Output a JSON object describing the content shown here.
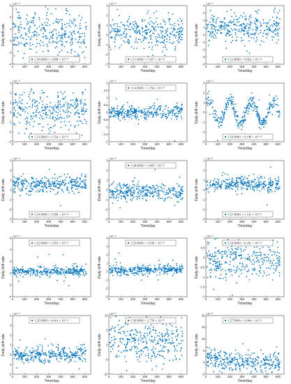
{
  "figure": {
    "xlabel": "Time/day",
    "ylabel": "Daily drift rate"
  },
  "chart_data": [
    {
      "type": "scatter",
      "legend": "C10 RMS = 1.808 × 10⁻¹³",
      "exponent": "×10⁻¹³",
      "xlim": [
        0,
        650
      ],
      "ylim": [
        -4,
        6
      ],
      "yticks": [
        -4,
        -2,
        0,
        2,
        4,
        6
      ],
      "xticks": [
        0,
        100,
        200,
        300,
        400,
        500,
        600
      ],
      "legend_loc": "bottom",
      "pattern": "noise",
      "center": 1.2,
      "spread": 1.8
    },
    {
      "type": "scatter",
      "legend": "C11 RMS = 7.367 × 10⁻¹⁴",
      "exponent": "×10⁻¹³",
      "xlim": [
        0,
        650
      ],
      "ylim": [
        -3,
        3
      ],
      "yticks": [
        -3,
        -2,
        -1,
        0,
        1,
        2,
        3
      ],
      "xticks": [
        0,
        100,
        200,
        300,
        400,
        500,
        600
      ],
      "legend_loc": "bottom",
      "pattern": "noise",
      "center": 0.2,
      "spread": 0.8
    },
    {
      "type": "scatter",
      "legend": "C12 RMS = 9.662 × 10⁻¹⁴",
      "exponent": "×10⁻¹³",
      "xlim": [
        0,
        650
      ],
      "ylim": [
        -4,
        4
      ],
      "yticks": [
        -4,
        -3,
        -2,
        -1,
        0,
        1,
        2,
        3,
        4
      ],
      "xticks": [
        0,
        100,
        200,
        300,
        400,
        500,
        600
      ],
      "legend_loc": "bottom",
      "pattern": "noise",
      "center": 0.9,
      "spread": 1.0
    },
    {
      "type": "scatter",
      "legend": "C13 RMS = 1.154 × 10⁻¹³",
      "exponent": "×10⁻¹³",
      "xlim": [
        0,
        650
      ],
      "ylim": [
        -3,
        3
      ],
      "yticks": [
        -3,
        -2,
        -1,
        0,
        1,
        2,
        3
      ],
      "xticks": [
        0,
        100,
        200,
        300,
        400,
        500,
        600
      ],
      "legend_loc": "bottom",
      "pattern": "noise",
      "center": 0.2,
      "spread": 1.1
    },
    {
      "type": "scatter",
      "legend": "C14 RMS = 1.764 × 10⁻¹³",
      "exponent": "×10⁻¹²",
      "xlim": [
        0,
        650
      ],
      "ylim": [
        -2,
        2
      ],
      "yticks": [
        -2,
        -1.5,
        -1,
        -0.5,
        0,
        0.5,
        1,
        1.5,
        2
      ],
      "xticks": [
        0,
        100,
        200,
        300,
        400,
        500,
        600
      ],
      "legend_loc": "top",
      "pattern": "noise",
      "center": 0.0,
      "spread": 0.25
    },
    {
      "type": "scatter",
      "legend": "C16 RMS = 9.188 × 10⁻¹⁴",
      "exponent": "×10⁻¹³",
      "xlim": [
        0,
        650
      ],
      "ylim": [
        -3,
        3
      ],
      "yticks": [
        -3,
        -2,
        -1,
        0,
        1,
        2,
        3
      ],
      "xticks": [
        0,
        100,
        200,
        300,
        400,
        500,
        600
      ],
      "legend_loc": "bottom",
      "pattern": "sine",
      "center": 0.0,
      "spread": 0.35,
      "amplitude": 1.1,
      "period": 180
    },
    {
      "type": "scatter",
      "legend": "C19 RMS = 5.906 × 10⁻¹⁴",
      "exponent": "×10⁻¹³",
      "xlim": [
        0,
        650
      ],
      "ylim": [
        -3,
        3
      ],
      "yticks": [
        -3,
        -2,
        -1,
        0,
        1,
        2,
        3
      ],
      "xticks": [
        0,
        100,
        200,
        300,
        400,
        500,
        600
      ],
      "legend_loc": "bottom",
      "pattern": "noise",
      "center": 0.6,
      "spread": 0.4
    },
    {
      "type": "scatter",
      "legend": "C20 RMS = 1.005 × 10⁻¹³",
      "exponent": "×10⁻¹²",
      "xlim": [
        0,
        650
      ],
      "ylim": [
        -3,
        3
      ],
      "yticks": [
        -3,
        -2,
        -1,
        0,
        1,
        2,
        3
      ],
      "xticks": [
        0,
        100,
        200,
        300,
        400,
        500,
        600
      ],
      "legend_loc": "top",
      "pattern": "noise",
      "center": -0.2,
      "spread": 0.45
    },
    {
      "type": "scatter",
      "legend": "C21 RMS = 1.141 × 10⁻¹³",
      "exponent": "×10⁻¹²",
      "xlim": [
        0,
        650
      ],
      "ylim": [
        -3,
        3
      ],
      "yticks": [
        -3,
        -2,
        -1,
        0,
        1,
        2,
        3
      ],
      "xticks": [
        0,
        100,
        200,
        300,
        400,
        500,
        600
      ],
      "legend_loc": "bottom",
      "pattern": "noise",
      "center": 0.6,
      "spread": 0.35
    },
    {
      "type": "scatter",
      "legend": "C22 RMS = 1.055 × 10⁻¹³",
      "exponent": "×10⁻¹²",
      "xlim": [
        0,
        650
      ],
      "ylim": [
        -4,
        6
      ],
      "yticks": [
        -4,
        -2,
        0,
        2,
        4,
        6
      ],
      "xticks": [
        0,
        100,
        200,
        300,
        400,
        500,
        600
      ],
      "legend_loc": "top",
      "pattern": "noise",
      "center": 0.3,
      "spread": 0.35
    },
    {
      "type": "scatter",
      "legend": "C23 RMS = 1.030 × 10⁻¹³",
      "exponent": "×10⁻¹²",
      "xlim": [
        0,
        650
      ],
      "ylim": [
        -3,
        4
      ],
      "yticks": [
        -3,
        -2,
        -1,
        0,
        1,
        2,
        3,
        4
      ],
      "xticks": [
        0,
        100,
        200,
        300,
        400,
        500,
        600
      ],
      "legend_loc": "top",
      "pattern": "noise",
      "center": 0.2,
      "spread": 0.3
    },
    {
      "type": "scatter",
      "legend": "C24 RMS = 6.281 × 10⁻¹⁴",
      "exponent": "×10⁻¹³",
      "xlim": [
        0,
        650
      ],
      "ylim": [
        -2,
        1
      ],
      "yticks": [
        -2,
        -1.5,
        -1,
        -0.5,
        0,
        0.5,
        1
      ],
      "xticks": [
        0,
        100,
        200,
        300,
        400,
        500,
        600
      ],
      "legend_loc": "top",
      "pattern": "noise",
      "center": -0.1,
      "spread": 0.45
    },
    {
      "type": "scatter",
      "legend": "C25 RMS = 4.414 × 10⁻¹⁴",
      "exponent": "×10⁻¹³",
      "xlim": [
        0,
        650
      ],
      "ylim": [
        -2,
        4
      ],
      "yticks": [
        -2,
        -1,
        0,
        1,
        2,
        3,
        4
      ],
      "xticks": [
        0,
        100,
        200,
        300,
        400,
        500,
        600
      ],
      "legend_loc": "top",
      "pattern": "noise",
      "center": 0.0,
      "spread": 0.4
    },
    {
      "type": "scatter",
      "legend": "C26 RMS = 2.759 × 10⁻¹³",
      "exponent": "×10⁻¹³",
      "xlim": [
        0,
        650
      ],
      "ylim": [
        -10,
        10
      ],
      "yticks": [
        -10,
        -5,
        0,
        5,
        10
      ],
      "xticks": [
        0,
        100,
        200,
        300,
        400,
        500,
        600
      ],
      "legend_loc": "top",
      "pattern": "noise",
      "center": 1.0,
      "spread": 3.5
    },
    {
      "type": "scatter",
      "legend": "C27 RMS = 3.004 × 10⁻¹³",
      "exponent": "×10⁻¹³",
      "xlim": [
        0,
        650
      ],
      "ylim": [
        -5,
        20
      ],
      "yticks": [
        -5,
        0,
        5,
        10,
        15,
        20
      ],
      "xticks": [
        0,
        100,
        200,
        300,
        400,
        500,
        600
      ],
      "legend_loc": "top",
      "pattern": "decay",
      "center": 0.0,
      "spread": 2.0,
      "amplitude": 3.0
    }
  ]
}
